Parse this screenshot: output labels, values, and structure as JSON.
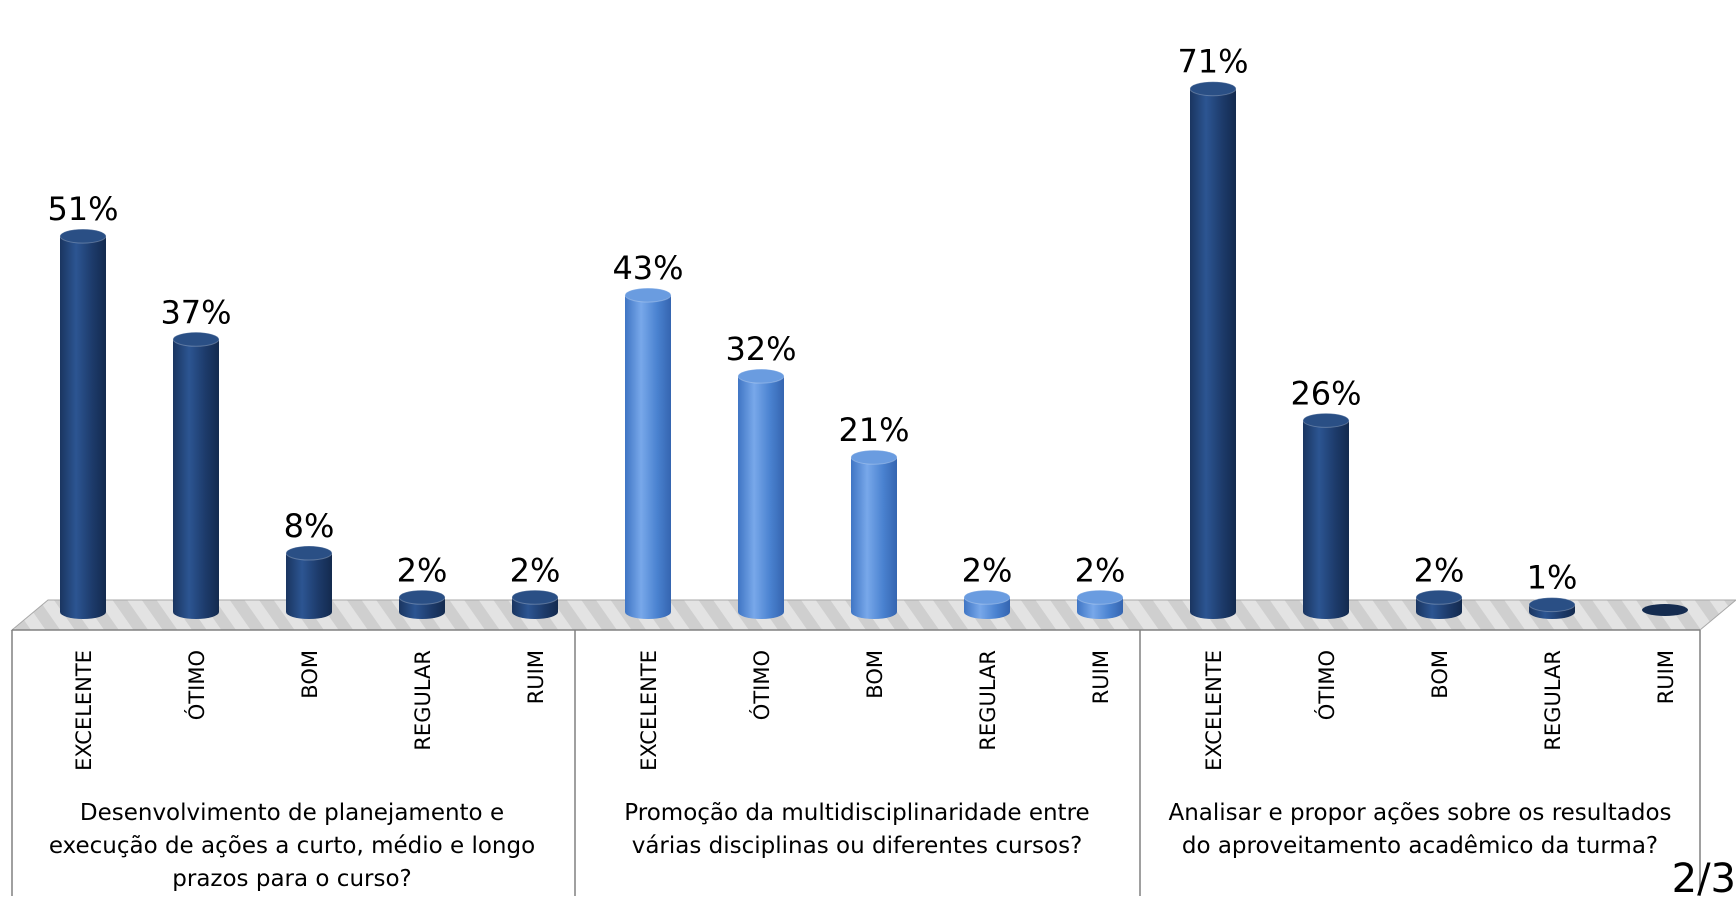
{
  "chart_data": {
    "type": "bar",
    "groups": [
      {
        "label": "Desenvolvimento de planejamento e execução de ações a curto, médio e longo prazos para o curso?",
        "label_lines": [
          "Desenvolvimento de planejamento e",
          "execução de ações a curto, médio e longo",
          "prazos para o curso?"
        ],
        "color": "#1f3f73",
        "categories": [
          "EXCELENTE",
          "ÓTIMO",
          "BOM",
          "REGULAR",
          "RUIM"
        ],
        "values": [
          51,
          37,
          8,
          2,
          2
        ],
        "value_labels": [
          "51%",
          "37%",
          "8%",
          "2%",
          "2%"
        ]
      },
      {
        "label": "Promoção da multidisciplinaridade entre várias disciplinas ou diferentes cursos?",
        "label_lines": [
          "Promoção da multidisciplinaridade entre",
          "várias disciplinas ou diferentes cursos?"
        ],
        "color": "#4f87d4",
        "categories": [
          "EXCELENTE",
          "ÓTIMO",
          "BOM",
          "REGULAR",
          "RUIM"
        ],
        "values": [
          43,
          32,
          21,
          2,
          2
        ],
        "value_labels": [
          "43%",
          "32%",
          "21%",
          "2%",
          "2%"
        ]
      },
      {
        "label": "Analisar e propor ações sobre os resultados do aproveitamento acadêmico da turma?",
        "label_lines": [
          "Analisar e propor ações sobre os resultados",
          "do aproveitamento acadêmico da turma?"
        ],
        "color": "#1f3f73",
        "categories": [
          "EXCELENTE",
          "ÓTIMO",
          "BOM",
          "REGULAR",
          "RUIM"
        ],
        "values": [
          71,
          26,
          2,
          1,
          0
        ],
        "value_labels": [
          "71%",
          "26%",
          "2%",
          "1%",
          ""
        ]
      }
    ],
    "ylim": [
      0,
      75
    ],
    "grid": false,
    "legend": "none"
  },
  "page_number": "2/3"
}
